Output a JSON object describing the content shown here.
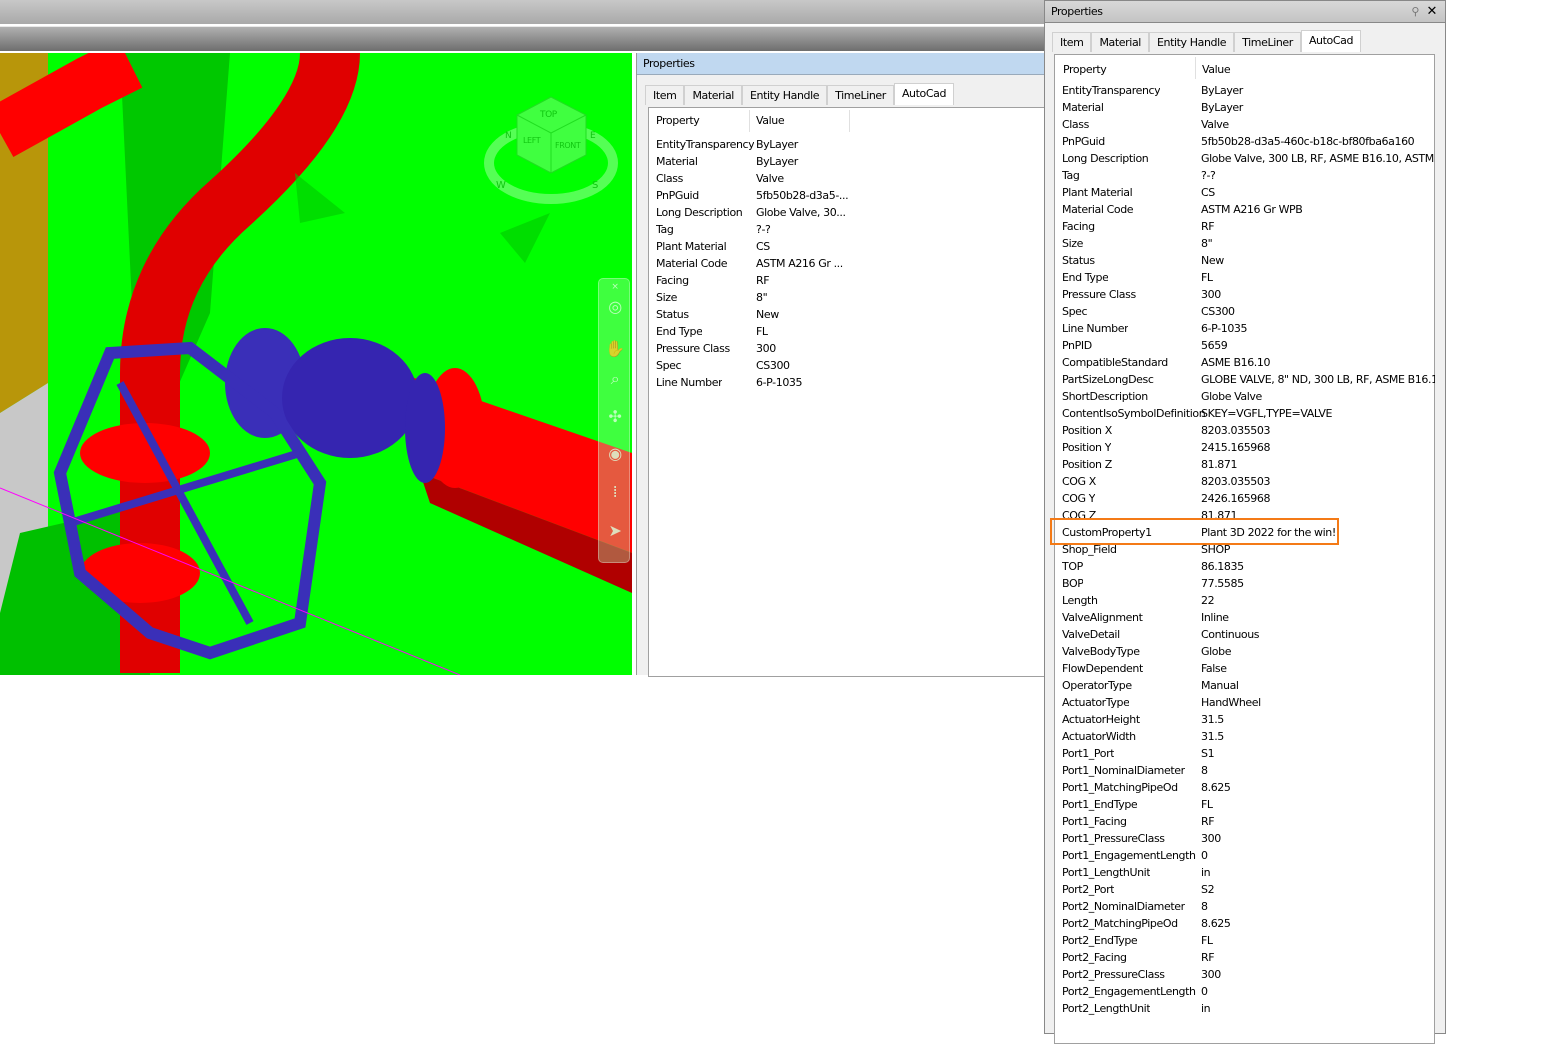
{
  "viewcube": {
    "top": "TOP",
    "left": "LEFT",
    "front": "FRONT",
    "compass_n": "N",
    "compass_e": "E",
    "compass_w": "W",
    "compass_s": "S"
  },
  "colors": {
    "background": "#00ff00",
    "pipe": "#ff0000",
    "valve": "#3a2fb8",
    "highlight": "#f47a16"
  },
  "navbar": {
    "icons": [
      "steering-wheel-icon",
      "pan-hand-icon",
      "zoom-window-icon",
      "orbit-icon",
      "look-icon",
      "walk-footprints-icon",
      "select-pointer-icon"
    ]
  },
  "middle_panel": {
    "title": "Properties",
    "tabs": [
      "Item",
      "Material",
      "Entity Handle",
      "TimeLiner",
      "AutoCad"
    ],
    "active_tab": "AutoCad",
    "columns": [
      "Property",
      "Value"
    ],
    "rows": [
      [
        "EntityTransparency",
        "ByLayer"
      ],
      [
        "Material",
        "ByLayer"
      ],
      [
        "Class",
        "Valve"
      ],
      [
        "PnPGuid",
        "5fb50b28-d3a5-..."
      ],
      [
        "Long Description",
        "Globe Valve, 30..."
      ],
      [
        "Tag",
        "?-?"
      ],
      [
        "Plant Material",
        "CS"
      ],
      [
        "Material Code",
        "ASTM A216 Gr ..."
      ],
      [
        "Facing",
        "RF"
      ],
      [
        "Size",
        "8\""
      ],
      [
        "Status",
        "New"
      ],
      [
        "End Type",
        "FL"
      ],
      [
        "Pressure Class",
        "300"
      ],
      [
        "Spec",
        "CS300"
      ],
      [
        "Line Number",
        "6-P-1035"
      ]
    ]
  },
  "right_panel": {
    "title": "Properties",
    "tabs": [
      "Item",
      "Material",
      "Entity Handle",
      "TimeLiner",
      "AutoCad"
    ],
    "active_tab": "AutoCad",
    "columns": [
      "Property",
      "Value"
    ],
    "rows": [
      [
        "EntityTransparency",
        "ByLayer"
      ],
      [
        "Material",
        "ByLayer"
      ],
      [
        "Class",
        "Valve"
      ],
      [
        "PnPGuid",
        "5fb50b28-d3a5-460c-b18c-bf80fba6a160"
      ],
      [
        "Long Description",
        "Globe Valve, 300 LB, RF, ASME B16.10, ASTM A"
      ],
      [
        "Tag",
        "?-?"
      ],
      [
        "Plant Material",
        "CS"
      ],
      [
        "Material Code",
        "ASTM A216 Gr WPB"
      ],
      [
        "Facing",
        "RF"
      ],
      [
        "Size",
        "8\""
      ],
      [
        "Status",
        "New"
      ],
      [
        "End Type",
        "FL"
      ],
      [
        "Pressure Class",
        "300"
      ],
      [
        "Spec",
        "CS300"
      ],
      [
        "Line Number",
        "6-P-1035"
      ],
      [
        "PnPID",
        "5659"
      ],
      [
        "CompatibleStandard",
        "ASME B16.10"
      ],
      [
        "PartSizeLongDesc",
        "GLOBE VALVE, 8\" ND, 300 LB, RF, ASME B16.1"
      ],
      [
        "ShortDescription",
        "Globe Valve"
      ],
      [
        "ContentIsoSymbolDefinition",
        "SKEY=VGFL,TYPE=VALVE"
      ],
      [
        "Position X",
        "8203.035503"
      ],
      [
        "Position Y",
        "2415.165968"
      ],
      [
        "Position Z",
        "81.871"
      ],
      [
        "COG X",
        "8203.035503"
      ],
      [
        "COG Y",
        "2426.165968"
      ],
      [
        "COG Z",
        "81.871"
      ],
      [
        "CustomProperty1",
        "Plant 3D 2022 for the win!"
      ],
      [
        "Shop_Field",
        "SHOP"
      ],
      [
        "TOP",
        "86.1835"
      ],
      [
        "BOP",
        "77.5585"
      ],
      [
        "Length",
        "22"
      ],
      [
        "ValveAlignment",
        "Inline"
      ],
      [
        "ValveDetail",
        "Continuous"
      ],
      [
        "ValveBodyType",
        "Globe"
      ],
      [
        "FlowDependent",
        "False"
      ],
      [
        "OperatorType",
        "Manual"
      ],
      [
        "ActuatorType",
        "HandWheel"
      ],
      [
        "ActuatorHeight",
        "31.5"
      ],
      [
        "ActuatorWidth",
        "31.5"
      ],
      [
        "Port1_Port",
        "S1"
      ],
      [
        "Port1_NominalDiameter",
        "8"
      ],
      [
        "Port1_MatchingPipeOd",
        "8.625"
      ],
      [
        "Port1_EndType",
        "FL"
      ],
      [
        "Port1_Facing",
        "RF"
      ],
      [
        "Port1_PressureClass",
        "300"
      ],
      [
        "Port1_EngagementLength",
        "0"
      ],
      [
        "Port1_LengthUnit",
        "in"
      ],
      [
        "Port2_Port",
        "S2"
      ],
      [
        "Port2_NominalDiameter",
        "8"
      ],
      [
        "Port2_MatchingPipeOd",
        "8.625"
      ],
      [
        "Port2_EndType",
        "FL"
      ],
      [
        "Port2_Facing",
        "RF"
      ],
      [
        "Port2_PressureClass",
        "300"
      ],
      [
        "Port2_EngagementLength",
        "0"
      ],
      [
        "Port2_LengthUnit",
        "in"
      ]
    ],
    "highlighted_row": "CustomProperty1"
  }
}
